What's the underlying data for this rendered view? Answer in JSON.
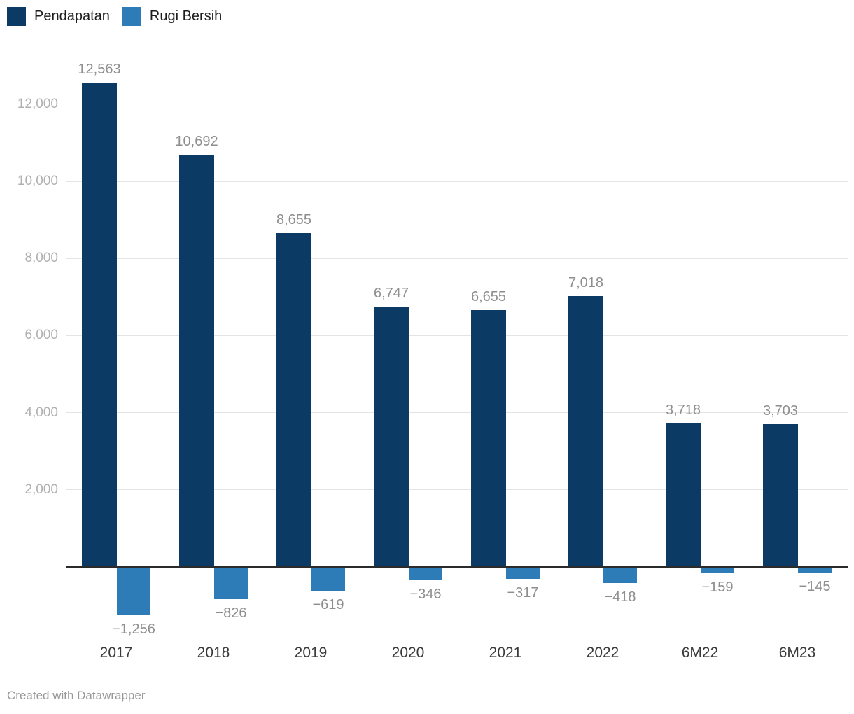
{
  "footer": {
    "text": "Created with Datawrapper"
  },
  "chart_data": {
    "type": "bar",
    "title": "",
    "categories": [
      "2017",
      "2018",
      "2019",
      "2020",
      "2021",
      "2022",
      "6M22",
      "6M23"
    ],
    "series": [
      {
        "name": "Pendapatan",
        "color": "#0b3a64",
        "values": [
          12563,
          10692,
          8655,
          6747,
          6655,
          7018,
          3718,
          3703
        ],
        "labels": [
          "12,563",
          "10,692",
          "8,655",
          "6,747",
          "6,655",
          "7,018",
          "3,718",
          "3,703"
        ]
      },
      {
        "name": "Rugi Bersih",
        "color": "#2d7cb8",
        "values": [
          -1256,
          -826,
          -619,
          -346,
          -317,
          -418,
          -159,
          -145
        ],
        "labels": [
          "−1,256",
          "−826",
          "−619",
          "−346",
          "−317",
          "−418",
          "−159",
          "−145"
        ]
      }
    ],
    "y_axis": {
      "ticks": [
        2000,
        4000,
        6000,
        8000,
        10000,
        12000
      ],
      "tick_labels": [
        "2,000",
        "4,000",
        "6,000",
        "8,000",
        "10,000",
        "12,000"
      ]
    },
    "ylim": [
      -1256,
      12563
    ],
    "grid": true,
    "legend_position": "top-left",
    "zero_line_color": "#2b2b2b",
    "gridline_color": "#e4e4e4"
  }
}
